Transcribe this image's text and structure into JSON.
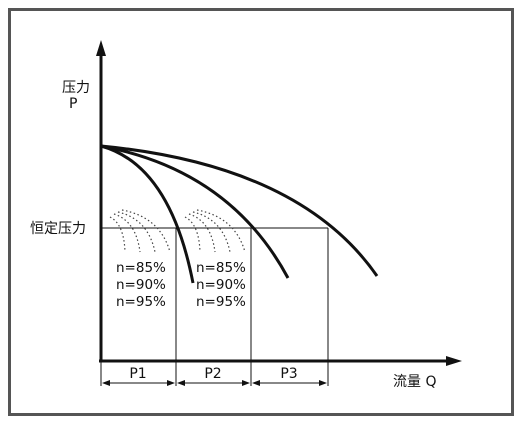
{
  "axes": {
    "y_label_cn": "压力",
    "y_label_sym": "P",
    "x_label": "流量 Q",
    "const_pressure_label": "恒定压力"
  },
  "efficiency_groups": [
    {
      "labels": [
        "n=85%",
        "n=90%",
        "n=95%"
      ]
    },
    {
      "labels": [
        "n=85%",
        "n=90%",
        "n=95%"
      ]
    }
  ],
  "segments": [
    {
      "label": "P1"
    },
    {
      "label": "P2"
    },
    {
      "label": "P3"
    }
  ],
  "colors": {
    "frame": "#555555",
    "ink": "#111111",
    "dotted": "#444444"
  }
}
